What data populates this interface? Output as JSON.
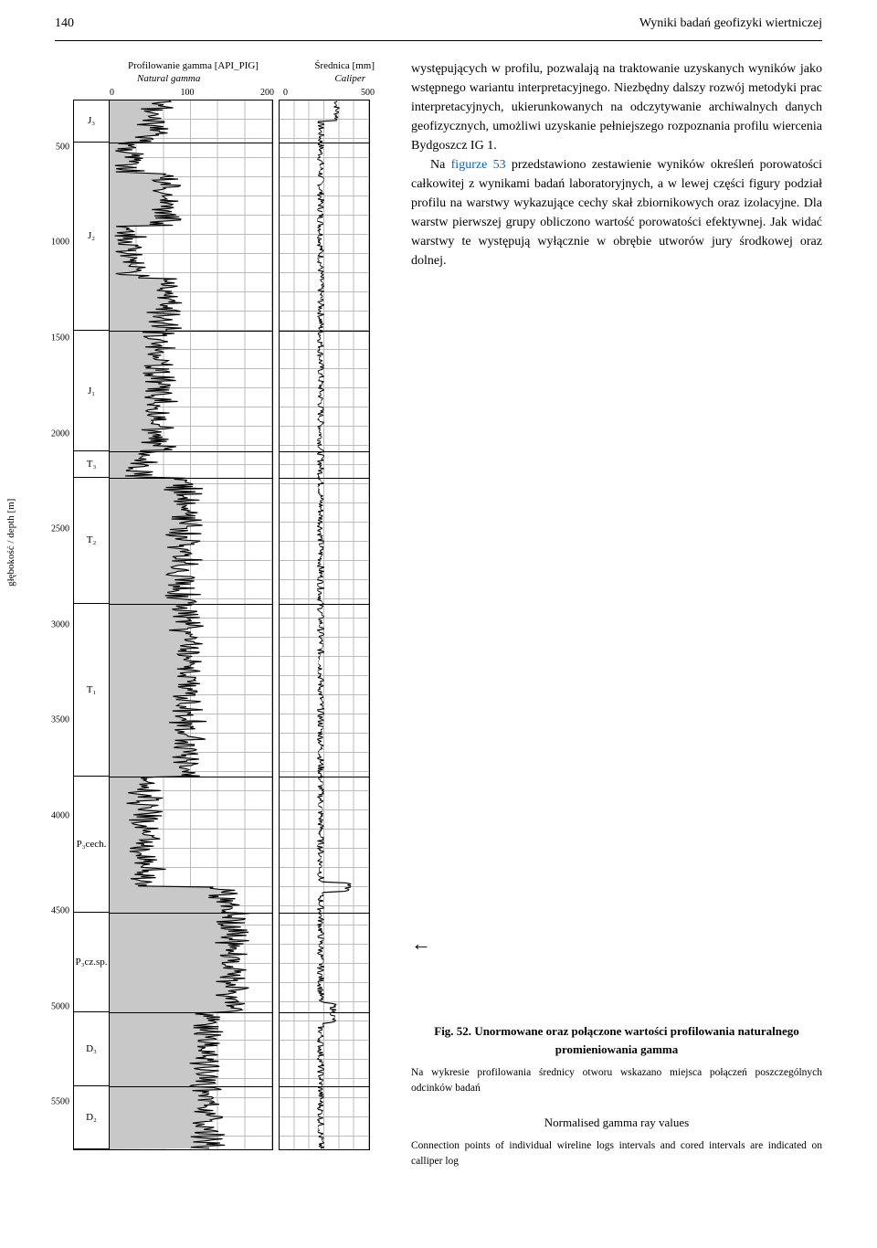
{
  "header": {
    "page_number": "140",
    "running_title": "Wyniki badań geofizyki wiertniczej"
  },
  "chart": {
    "title_gamma_pl": "Profilowanie gamma [API_PIG]",
    "title_caliper_pl": "Średnica [mm]",
    "title_gamma_en": "Natural gamma",
    "title_caliper_en": "Caliper",
    "gamma_ticks": [
      "0",
      "100",
      "200"
    ],
    "caliper_ticks": [
      "0",
      "500"
    ],
    "y_axis_label": "głębokość / depth [m]",
    "depth_ticks": [
      "500",
      "1000",
      "1500",
      "2000",
      "2500",
      "3000",
      "3500",
      "4000",
      "4500",
      "5000",
      "5500"
    ],
    "strat_labels": [
      {
        "label": "J₃",
        "top_pct": 0,
        "height_pct": 4
      },
      {
        "label": "J₂",
        "top_pct": 4,
        "height_pct": 18
      },
      {
        "label": "J₁",
        "top_pct": 22,
        "height_pct": 11.5
      },
      {
        "label": "T₃",
        "top_pct": 33.5,
        "height_pct": 2.5
      },
      {
        "label": "T₂",
        "top_pct": 36,
        "height_pct": 12
      },
      {
        "label": "T₁",
        "top_pct": 48,
        "height_pct": 16.5
      },
      {
        "label": "P₃cech.",
        "top_pct": 64.5,
        "height_pct": 13
      },
      {
        "label": "P₃cz.sp.",
        "top_pct": 77.5,
        "height_pct": 9.5
      },
      {
        "label": "D₃",
        "top_pct": 87,
        "height_pct": 7
      },
      {
        "label": "D₂",
        "top_pct": 94,
        "height_pct": 6
      }
    ],
    "boundary_lines_pct": [
      4,
      22,
      33.5,
      36,
      48,
      64.5,
      77.5,
      87,
      94
    ],
    "gamma_fill_color": "#c8c8c8",
    "curve_color": "#000000",
    "grid_color": "#bbbbbb"
  },
  "body_text": {
    "p1": "występujących w profilu, pozwalają na traktowanie uzyskanych wyników jako wstępnego wariantu interpretacyjnego. Niezbędny dalszy rozwój metodyki prac interpretacyjnych, ukierunkowanych na odczytywanie archiwalnych danych geofizycznych, umożliwi uzyskanie pełniejszego rozpoznania profilu wiercenia Bydgoszcz IG 1.",
    "p2_pre": "Na ",
    "p2_figref": "figurze 53",
    "p2_post": " przedstawiono zestawienie wyników określeń porowatości całkowitej z wynikami badań laboratoryjnych, a w lewej części figury podział profilu na warstwy wykazujące cechy skał zbiornikowych oraz izolacyjne. Dla warstw pierwszej grupy obliczono wartość porowatości efektywnej. Jak widać warstwy te występują wyłącznie w obrębie utworów jury środkowej oraz dolnej."
  },
  "arrow_glyph": "←",
  "caption": {
    "fig_label": "Fig. 52. ",
    "title_pl": "Unormowane oraz połączone wartości profilowania naturalnego promieniowania gamma",
    "note_pl": "Na wykresie profilowania średnicy otworu wskazano miejsca połączeń poszczególnych odcinków badań",
    "title_en": "Normalised gamma ray values",
    "note_en": "Connection points of individual wireline logs intervals and cored intervals are indicated on calliper log"
  }
}
